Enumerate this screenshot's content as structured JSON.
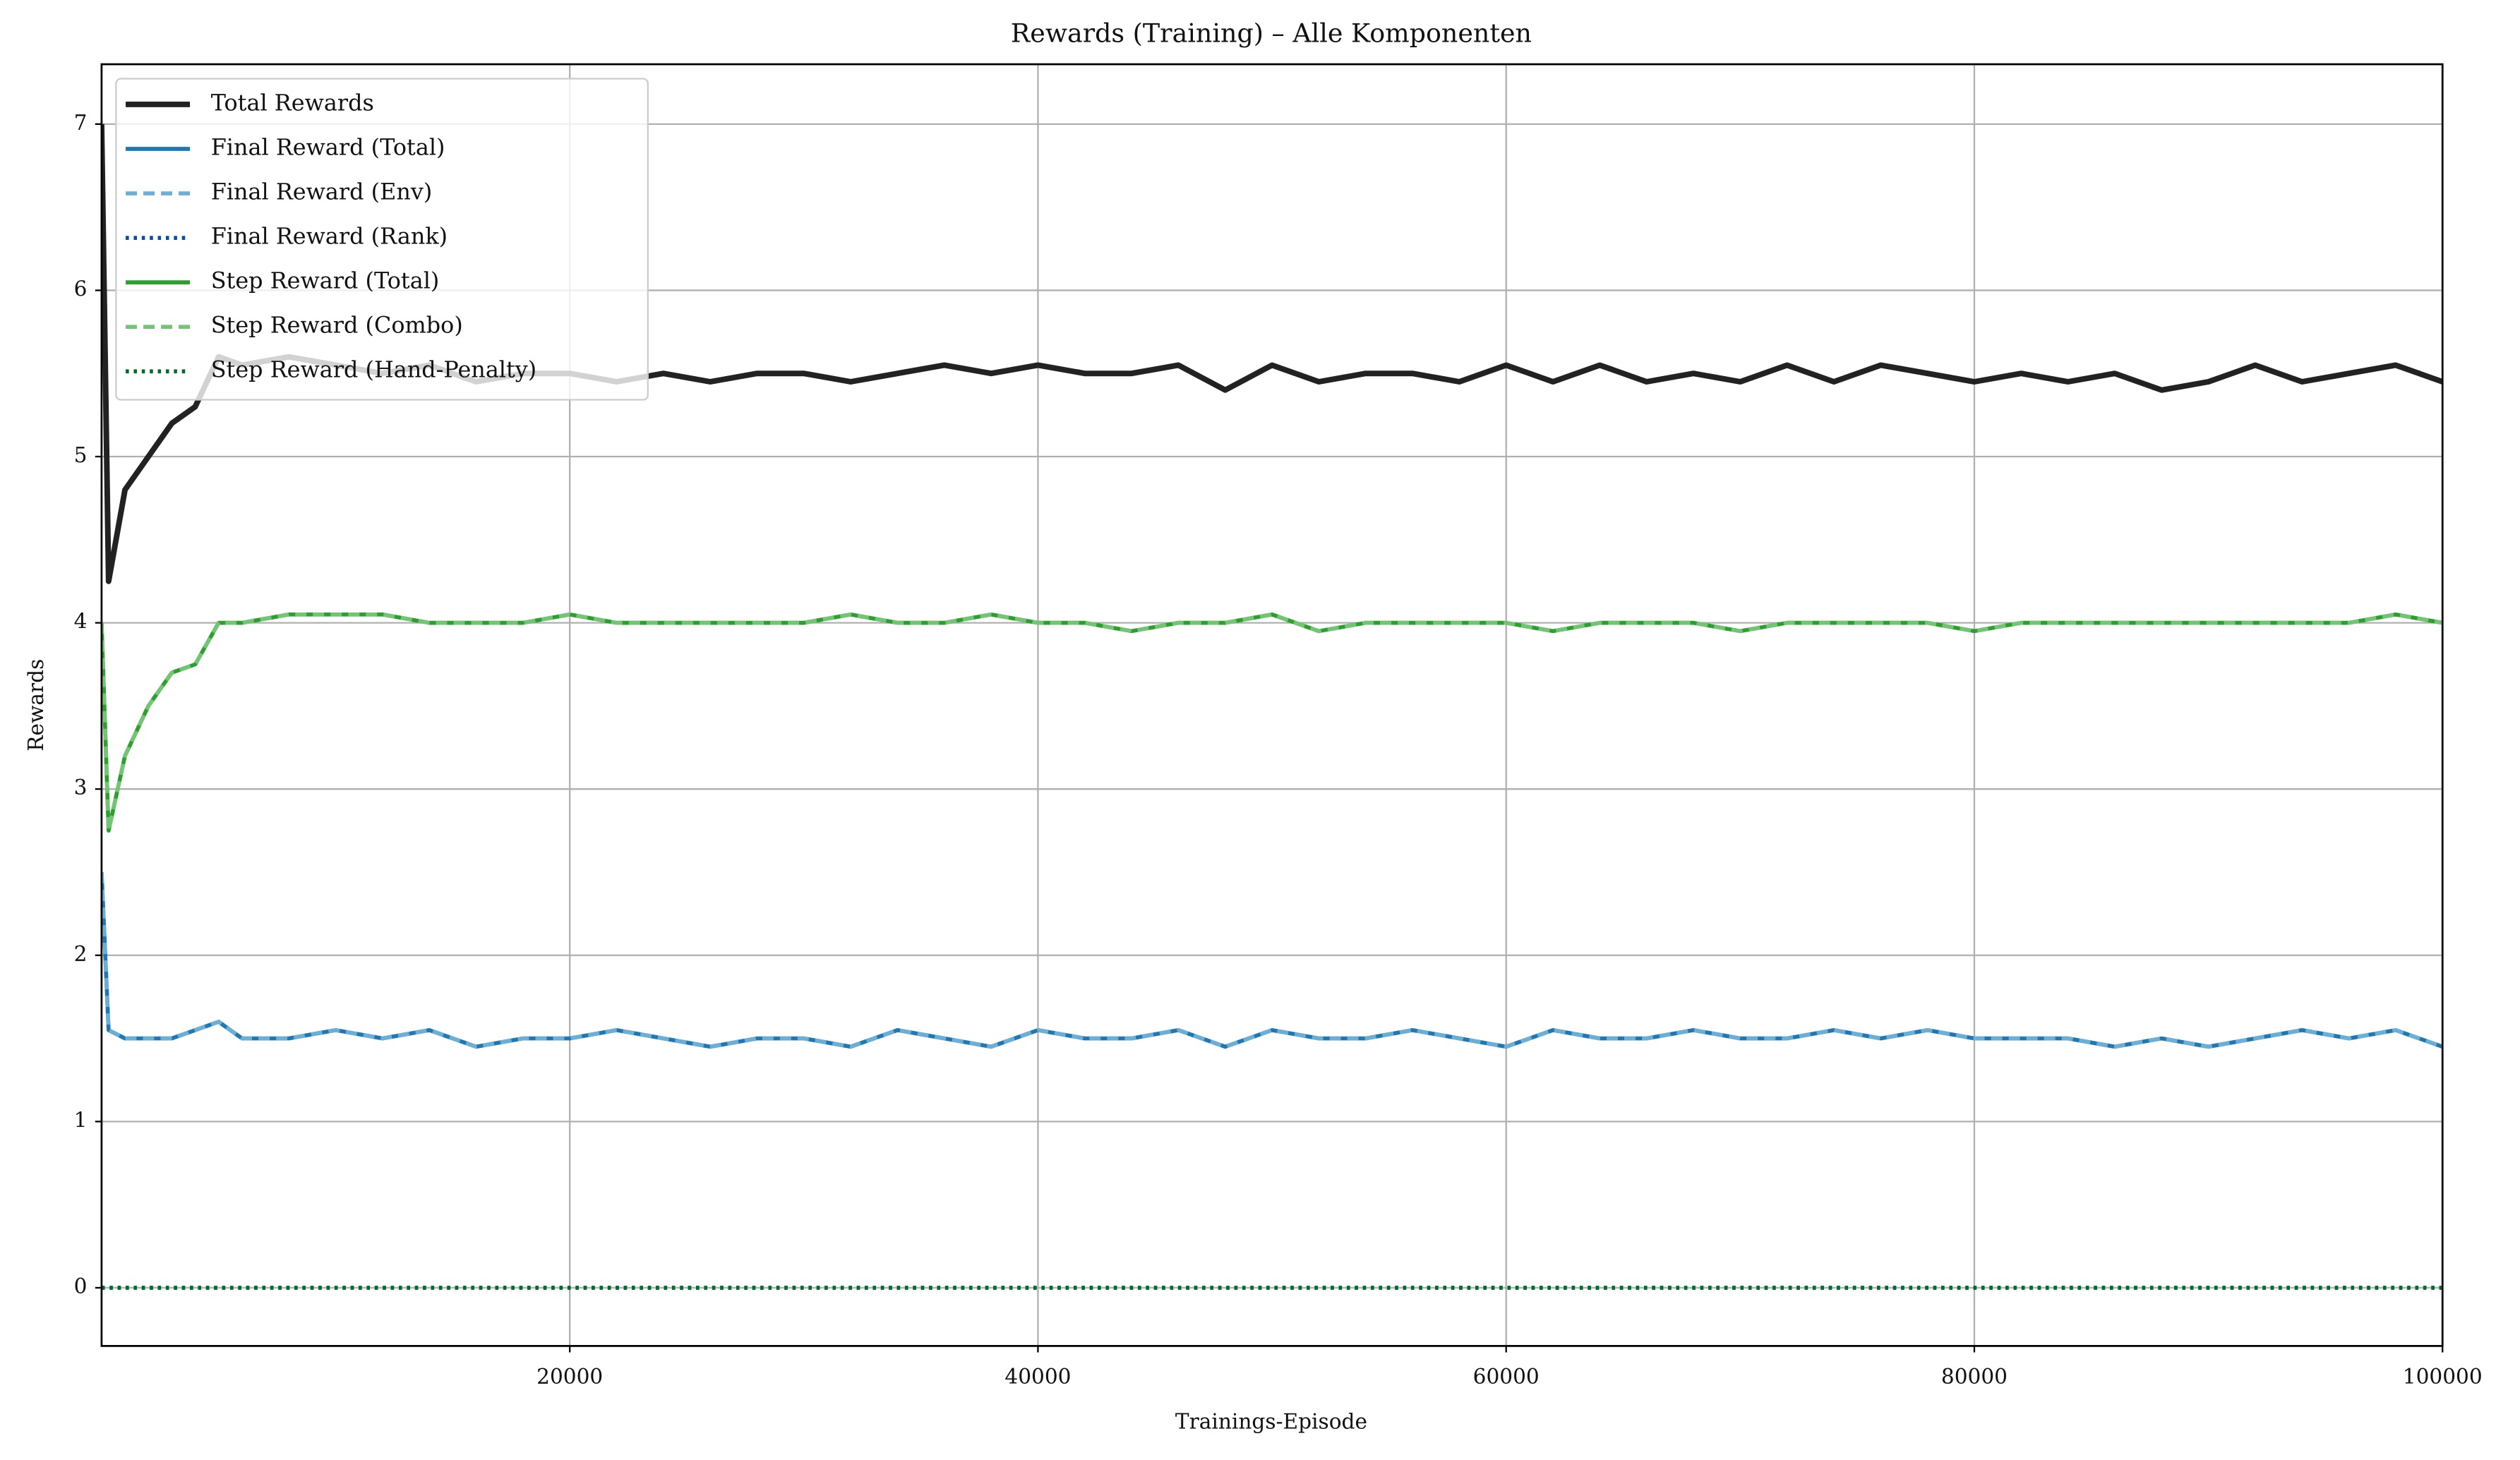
{
  "chart_data": {
    "type": "line",
    "title": "Rewards (Training) – Alle Komponenten",
    "xlabel": "Trainings-Episode",
    "ylabel": "Rewards",
    "xlim": [
      0,
      100000
    ],
    "ylim": [
      -0.35,
      7.36
    ],
    "xticks": [
      20000,
      40000,
      60000,
      80000,
      100000
    ],
    "yticks": [
      0,
      1,
      2,
      3,
      4,
      5,
      6,
      7
    ],
    "grid": true,
    "legend": "upper-left",
    "x": [
      0,
      300,
      1000,
      2000,
      3000,
      4000,
      5000,
      6000,
      8000,
      10000,
      12000,
      14000,
      16000,
      18000,
      20000,
      22000,
      24000,
      26000,
      28000,
      30000,
      32000,
      34000,
      36000,
      38000,
      40000,
      42000,
      44000,
      46000,
      48000,
      50000,
      52000,
      54000,
      56000,
      58000,
      60000,
      62000,
      64000,
      66000,
      68000,
      70000,
      72000,
      74000,
      76000,
      78000,
      80000,
      82000,
      84000,
      86000,
      88000,
      90000,
      92000,
      94000,
      96000,
      98000,
      100000
    ],
    "series": [
      {
        "name": "Total Rewards",
        "color": "#222222",
        "width": 3.5,
        "dash": "solid",
        "values": [
          7,
          4.25,
          4.8,
          5.0,
          5.2,
          5.3,
          5.6,
          5.55,
          5.6,
          5.55,
          5.5,
          5.55,
          5.45,
          5.5,
          5.5,
          5.45,
          5.5,
          5.45,
          5.5,
          5.5,
          5.45,
          5.5,
          5.55,
          5.5,
          5.55,
          5.5,
          5.5,
          5.55,
          5.4,
          5.55,
          5.45,
          5.5,
          5.5,
          5.45,
          5.55,
          5.45,
          5.55,
          5.45,
          5.5,
          5.45,
          5.55,
          5.45,
          5.55,
          5.5,
          5.45,
          5.5,
          5.45,
          5.5,
          5.4,
          5.45,
          5.55,
          5.45,
          5.5,
          5.55,
          5.45
        ]
      },
      {
        "name": "Final Reward (Total)",
        "color": "#1f77b4",
        "width": 2.5,
        "dash": "solid",
        "values": [
          2.5,
          1.55,
          1.5,
          1.5,
          1.5,
          1.55,
          1.6,
          1.5,
          1.5,
          1.55,
          1.5,
          1.55,
          1.45,
          1.5,
          1.5,
          1.55,
          1.5,
          1.45,
          1.5,
          1.5,
          1.45,
          1.55,
          1.5,
          1.45,
          1.55,
          1.5,
          1.5,
          1.55,
          1.45,
          1.55,
          1.5,
          1.5,
          1.55,
          1.5,
          1.45,
          1.55,
          1.5,
          1.5,
          1.55,
          1.5,
          1.5,
          1.55,
          1.5,
          1.55,
          1.5,
          1.5,
          1.5,
          1.45,
          1.5,
          1.45,
          1.5,
          1.55,
          1.5,
          1.55,
          1.45
        ]
      },
      {
        "name": "Final Reward (Env)",
        "color": "#6baed6",
        "width": 2.5,
        "dash": "dashed",
        "values": [
          2.5,
          1.55,
          1.5,
          1.5,
          1.5,
          1.55,
          1.6,
          1.5,
          1.5,
          1.55,
          1.5,
          1.55,
          1.45,
          1.5,
          1.5,
          1.55,
          1.5,
          1.45,
          1.5,
          1.5,
          1.45,
          1.55,
          1.5,
          1.45,
          1.55,
          1.5,
          1.5,
          1.55,
          1.45,
          1.55,
          1.5,
          1.5,
          1.55,
          1.5,
          1.45,
          1.55,
          1.5,
          1.5,
          1.55,
          1.5,
          1.5,
          1.55,
          1.5,
          1.55,
          1.5,
          1.5,
          1.5,
          1.45,
          1.5,
          1.45,
          1.5,
          1.55,
          1.5,
          1.55,
          1.45
        ]
      },
      {
        "name": "Final Reward (Rank)",
        "color": "#08519c",
        "width": 2.5,
        "dash": "dotted",
        "values": [
          0,
          0,
          0,
          0,
          0,
          0,
          0,
          0,
          0,
          0,
          0,
          0,
          0,
          0,
          0,
          0,
          0,
          0,
          0,
          0,
          0,
          0,
          0,
          0,
          0,
          0,
          0,
          0,
          0,
          0,
          0,
          0,
          0,
          0,
          0,
          0,
          0,
          0,
          0,
          0,
          0,
          0,
          0,
          0,
          0,
          0,
          0,
          0,
          0,
          0,
          0,
          0,
          0,
          0,
          0
        ]
      },
      {
        "name": "Step Reward (Total)",
        "color": "#2ca02c",
        "width": 2.5,
        "dash": "solid",
        "values": [
          4,
          2.75,
          3.2,
          3.5,
          3.7,
          3.75,
          4,
          4,
          4.05,
          4.05,
          4.05,
          4,
          4,
          4,
          4.05,
          4,
          4,
          4,
          4,
          4,
          4.05,
          4,
          4,
          4.05,
          4,
          4,
          3.95,
          4,
          4,
          4.05,
          3.95,
          4,
          4,
          4,
          4,
          3.95,
          4,
          4,
          4,
          3.95,
          4,
          4,
          4,
          4,
          3.95,
          4,
          4,
          4,
          4,
          4,
          4,
          4,
          4,
          4.05,
          4
        ]
      },
      {
        "name": "Step Reward (Combo)",
        "color": "#74c476",
        "width": 2.5,
        "dash": "dashed",
        "values": [
          4,
          2.75,
          3.2,
          3.5,
          3.7,
          3.75,
          4,
          4,
          4.05,
          4.05,
          4.05,
          4,
          4,
          4,
          4.05,
          4,
          4,
          4,
          4,
          4,
          4.05,
          4,
          4,
          4.05,
          4,
          4,
          3.95,
          4,
          4,
          4.05,
          3.95,
          4,
          4,
          4,
          4,
          3.95,
          4,
          4,
          4,
          3.95,
          4,
          4,
          4,
          4,
          3.95,
          4,
          4,
          4,
          4,
          4,
          4,
          4,
          4,
          4.05,
          4
        ]
      },
      {
        "name": "Step Reward (Hand-Penalty)",
        "color": "#006d2c",
        "width": 2.5,
        "dash": "dotted",
        "values": [
          0,
          0,
          0,
          0,
          0,
          0,
          0,
          0,
          0,
          0,
          0,
          0,
          0,
          0,
          0,
          0,
          0,
          0,
          0,
          0,
          0,
          0,
          0,
          0,
          0,
          0,
          0,
          0,
          0,
          0,
          0,
          0,
          0,
          0,
          0,
          0,
          0,
          0,
          0,
          0,
          0,
          0,
          0,
          0,
          0,
          0,
          0,
          0,
          0,
          0,
          0,
          0,
          0,
          0,
          0
        ]
      }
    ]
  }
}
